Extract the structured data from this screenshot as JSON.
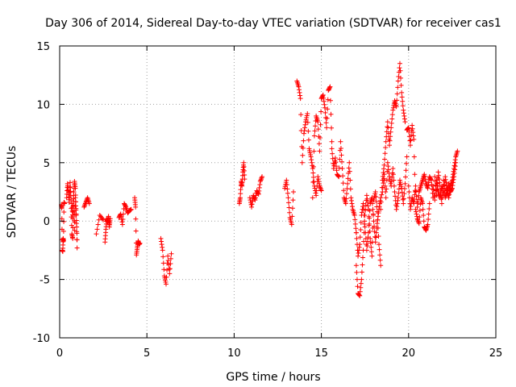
{
  "chart_data": {
    "type": "scatter",
    "title": "Day 306 of 2014, Sidereal Day-to-day VTEC variation (SDTVAR) for receiver cas1",
    "xlabel": "GPS time / hours",
    "ylabel": "SDTVAR / TECUs",
    "xlim": [
      0,
      25
    ],
    "ylim": [
      -10,
      15
    ],
    "xticks": [
      0,
      5,
      10,
      15,
      20,
      25
    ],
    "yticks": [
      -10,
      -5,
      0,
      5,
      10,
      15
    ],
    "grid": true,
    "marker": "+",
    "color": "#ff0000",
    "series": [
      {
        "name": "SDTVAR",
        "segments": [
          {
            "x": [
              0.1,
              0.12,
              0.15,
              0.18,
              0.2,
              0.22,
              0.25,
              0.28
            ],
            "y": [
              1.4,
              1.1,
              -2.5,
              -2.6,
              -1.5,
              -1.7,
              1.6,
              1.5
            ]
          },
          {
            "x": [
              0.4,
              0.45,
              0.5,
              0.55,
              0.6,
              0.65,
              0.7,
              0.75,
              0.8,
              0.85,
              0.9,
              0.95,
              1.0
            ],
            "y": [
              2.0,
              3.2,
              2.5,
              1.6,
              3.3,
              1.8,
              -1.1,
              -1.5,
              2.2,
              3.4,
              2.8,
              0.5,
              -2.3
            ]
          },
          {
            "x": [
              0.7,
              0.75,
              0.8,
              0.85,
              0.9,
              0.95,
              1.0
            ],
            "y": [
              1.5,
              0.2,
              2.5,
              -0.8,
              2.0,
              0.6,
              -1.6
            ]
          },
          {
            "x": [
              1.4,
              1.5,
              1.6,
              1.7
            ],
            "y": [
              1.2,
              1.6,
              2.0,
              1.5
            ]
          },
          {
            "x": [
              2.1,
              2.3,
              2.5
            ],
            "y": [
              -1.1,
              0.5,
              0.1
            ]
          },
          {
            "x": [
              2.6,
              2.65,
              2.7,
              2.75,
              2.8,
              2.85,
              2.9
            ],
            "y": [
              -1.8,
              -0.7,
              0.2,
              -0.1,
              0.4,
              -0.5,
              0.2
            ]
          },
          {
            "x": [
              3.4,
              3.5,
              3.6,
              3.7,
              3.8,
              3.9,
              4.0,
              4.1
            ],
            "y": [
              0.3,
              0.6,
              -0.3,
              1.5,
              1.2,
              0.7,
              0.9,
              1.0
            ]
          },
          {
            "x": [
              4.3,
              4.35,
              4.4,
              4.45,
              4.5,
              4.55,
              4.6
            ],
            "y": [
              2.0,
              1.2,
              -2.9,
              -2.3,
              -1.7,
              -2.0,
              -1.9
            ]
          },
          {
            "x": [
              5.8,
              5.9,
              6.0,
              6.1,
              6.2,
              6.3,
              6.4
            ],
            "y": [
              -1.5,
              -2.5,
              -4.7,
              -5.4,
              -3.0,
              -4.5,
              -2.8
            ]
          },
          {
            "x": [
              10.3,
              10.35,
              10.4,
              10.45,
              10.5,
              10.55,
              10.6
            ],
            "y": [
              1.5,
              2.0,
              3.4,
              3.0,
              4.2,
              5.0,
              3.6
            ]
          },
          {
            "x": [
              10.9,
              11.0,
              11.1,
              11.2,
              11.3,
              11.4,
              11.5,
              11.6
            ],
            "y": [
              2.0,
              1.2,
              2.2,
              1.8,
              2.6,
              2.3,
              3.4,
              3.8
            ]
          },
          {
            "x": [
              12.9,
              13.0,
              13.1,
              13.2,
              13.3,
              13.4
            ],
            "y": [
              2.8,
              3.5,
              2.0,
              0.3,
              -0.3,
              2.5
            ]
          },
          {
            "x": [
              13.6,
              13.7,
              13.8,
              13.9,
              14.0,
              14.1,
              14.2,
              14.3,
              14.4,
              14.5,
              14.6,
              14.7,
              14.8,
              14.9,
              15.0
            ],
            "y": [
              12.0,
              11.5,
              10.5,
              5.0,
              7.5,
              8.5,
              9.2,
              6.2,
              5.5,
              4.5,
              3.0,
              2.2,
              3.8,
              3.0,
              2.6
            ]
          },
          {
            "x": [
              14.5,
              14.6,
              14.7,
              14.8,
              14.9,
              15.0,
              15.1,
              15.2,
              15.3,
              15.4,
              15.5,
              15.6
            ],
            "y": [
              2.0,
              7.3,
              9.0,
              8.5,
              6.0,
              10.5,
              10.8,
              9.7,
              8.0,
              11.2,
              11.5,
              6.8
            ]
          },
          {
            "x": [
              15.6,
              15.7,
              15.8,
              15.9,
              16.0,
              16.1,
              16.2,
              16.3,
              16.4,
              16.5,
              16.6,
              16.7,
              16.8,
              16.9,
              17.0
            ],
            "y": [
              6.2,
              4.5,
              5.4,
              4.0,
              3.8,
              6.8,
              4.5,
              2.0,
              1.5,
              3.2,
              5.0,
              2.0,
              1.0,
              0.5,
              -1.0
            ]
          },
          {
            "x": [
              17.0,
              17.1,
              17.2,
              17.3,
              17.4,
              17.5,
              17.6,
              17.7,
              17.8,
              17.9,
              18.0,
              18.1,
              18.2,
              18.3,
              18.4
            ],
            "y": [
              -3.8,
              -6.2,
              -6.4,
              -5.0,
              -2.5,
              0.5,
              2.2,
              1.0,
              -1.5,
              -3.0,
              1.8,
              2.5,
              0.8,
              -2.0,
              -3.8
            ]
          },
          {
            "x": [
              17.0,
              17.1,
              17.2,
              17.3,
              17.4,
              17.5,
              17.6,
              17.7,
              17.8,
              17.9,
              18.0,
              18.1,
              18.2,
              18.3,
              18.4
            ],
            "y": [
              -1.0,
              -3.0,
              -2.0,
              0.5,
              1.5,
              -0.5,
              -2.5,
              -1.0,
              1.5,
              2.0,
              0.0,
              -1.8,
              -0.2,
              1.0,
              2.0
            ]
          },
          {
            "x": [
              18.4,
              18.5,
              18.6,
              18.7,
              18.8,
              18.9,
              19.0,
              19.1,
              19.2,
              19.3,
              19.4,
              19.5,
              19.6,
              19.7,
              19.8
            ],
            "y": [
              1.0,
              3.5,
              4.8,
              6.8,
              8.5,
              6.5,
              8.0,
              9.5,
              10.3,
              9.8,
              12.0,
              13.5,
              11.0,
              9.5,
              8.5
            ]
          },
          {
            "x": [
              18.5,
              18.6,
              18.7,
              18.8,
              18.9,
              19.0,
              19.1,
              19.2,
              19.3,
              19.4,
              19.5,
              19.6,
              19.7,
              19.8,
              19.9
            ],
            "y": [
              2.5,
              4.0,
              2.0,
              5.0,
              3.8,
              3.0,
              4.5,
              2.5,
              1.0,
              2.0,
              3.5,
              2.8,
              1.5,
              3.2,
              5.5
            ]
          },
          {
            "x": [
              19.9,
              20.0,
              20.1,
              20.2,
              20.3,
              20.4,
              20.5,
              20.6,
              20.7,
              20.8,
              20.9,
              21.0,
              21.1,
              21.2
            ],
            "y": [
              7.8,
              8.0,
              6.5,
              8.2,
              7.0,
              1.0,
              0.2,
              -0.2,
              2.0,
              1.5,
              -0.5,
              -0.8,
              -0.3,
              1.5
            ]
          },
          {
            "x": [
              20.0,
              20.1,
              20.2,
              20.3,
              20.4,
              20.5,
              20.6,
              20.7,
              20.8,
              20.9,
              21.0,
              21.1,
              21.2,
              21.3,
              21.4
            ],
            "y": [
              3.0,
              1.0,
              2.0,
              1.5,
              3.0,
              1.2,
              2.5,
              3.0,
              3.5,
              4.0,
              3.2,
              2.8,
              3.8,
              3.5,
              2.0
            ]
          },
          {
            "x": [
              21.4,
              21.5,
              21.6,
              21.7,
              21.8,
              21.9,
              22.0,
              22.1,
              22.2,
              22.3,
              22.4,
              22.5,
              22.6,
              22.7,
              22.8
            ],
            "y": [
              3.0,
              1.8,
              3.5,
              2.5,
              2.0,
              3.0,
              2.2,
              3.8,
              2.8,
              2.0,
              3.0,
              3.5,
              4.5,
              5.5,
              6.0
            ]
          },
          {
            "x": [
              21.5,
              21.6,
              21.7,
              21.8,
              21.9,
              22.0,
              22.1,
              22.2,
              22.3,
              22.4,
              22.5,
              22.6,
              22.7
            ],
            "y": [
              3.8,
              2.2,
              4.2,
              3.0,
              1.5,
              3.5,
              2.0,
              2.5,
              3.2,
              2.5,
              2.8,
              3.8,
              5.0
            ]
          }
        ]
      }
    ]
  }
}
